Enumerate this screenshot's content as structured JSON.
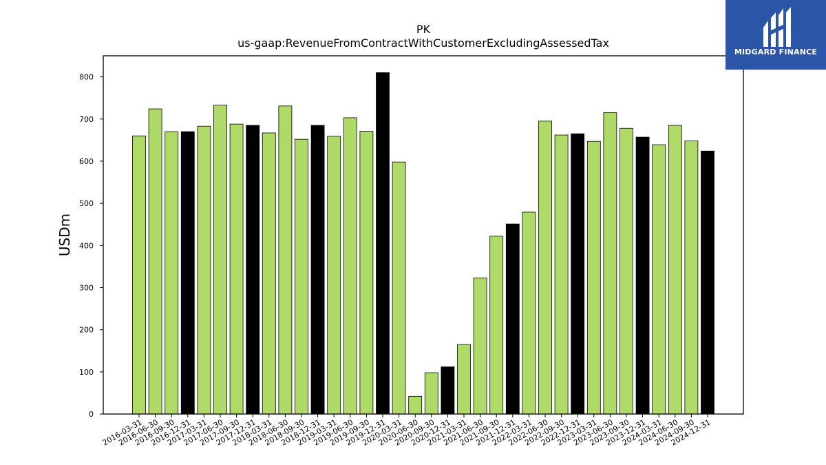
{
  "logo": {
    "text": "MIDGARD FINANCE",
    "icon": "midgard-monogram-icon",
    "background": "#2b56a8"
  },
  "colors": {
    "quarter_bar": "#b0da68",
    "year_end_bar": "#000000",
    "bar_edge": "#000000"
  },
  "chart_data": {
    "type": "bar",
    "title": "PK",
    "subtitle": "us-gaap:RevenueFromContractWithCustomerExcludingAssessedTax",
    "xlabel": "",
    "ylabel": "USDm",
    "ylim": [
      0,
      850
    ],
    "yticks": [
      0,
      100,
      200,
      300,
      400,
      500,
      600,
      700,
      800
    ],
    "grid": false,
    "categories": [
      "2016-03-31",
      "2016-06-30",
      "2016-09-30",
      "2016-12-31",
      "2017-03-31",
      "2017-06-30",
      "2017-09-30",
      "2017-12-31",
      "2018-03-31",
      "2018-06-30",
      "2018-09-30",
      "2018-12-31",
      "2019-03-31",
      "2019-06-30",
      "2019-09-30",
      "2019-12-31",
      "2020-03-31",
      "2020-06-30",
      "2020-09-30",
      "2020-12-31",
      "2021-03-31",
      "2021-06-30",
      "2021-09-30",
      "2021-12-31",
      "2022-03-31",
      "2022-06-30",
      "2022-09-30",
      "2022-12-31",
      "2023-03-31",
      "2023-06-30",
      "2023-09-30",
      "2023-12-31",
      "2024-03-31",
      "2024-06-30",
      "2024-09-30",
      "2024-12-31"
    ],
    "values": [
      660,
      724,
      670,
      670,
      683,
      733,
      688,
      685,
      667,
      731,
      652,
      685,
      659,
      703,
      671,
      810,
      598,
      42,
      98,
      112,
      165,
      323,
      422,
      451,
      479,
      695,
      662,
      665,
      647,
      715,
      678,
      657,
      639,
      685,
      648,
      624
    ],
    "year_end_highlight": [
      false,
      false,
      false,
      true,
      false,
      false,
      false,
      true,
      false,
      false,
      false,
      true,
      false,
      false,
      false,
      true,
      false,
      false,
      false,
      true,
      false,
      false,
      false,
      true,
      false,
      false,
      false,
      true,
      false,
      false,
      false,
      true,
      false,
      false,
      false,
      true
    ]
  }
}
